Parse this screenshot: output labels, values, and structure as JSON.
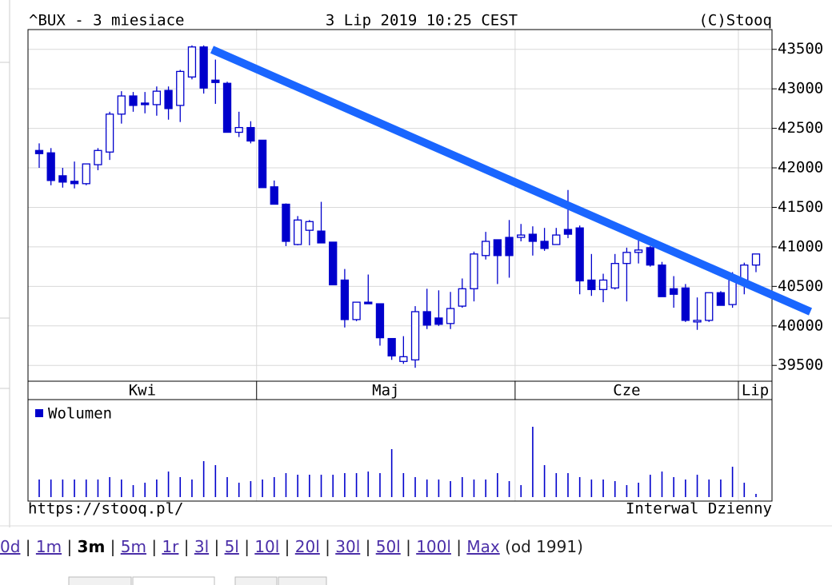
{
  "header": {
    "symbol": "^BUX - 3 miesiace",
    "date": "3 Lip 2019 10:25 CEST",
    "copyright": "(C)Stooq"
  },
  "chart_data": {
    "type": "candlestick",
    "color": "#0000cc",
    "grid": true,
    "ylim": [
      39300,
      43750
    ],
    "yticks": [
      39500,
      40000,
      40500,
      41000,
      41500,
      42000,
      42500,
      43000,
      43500
    ],
    "months": [
      {
        "label": "Kwi",
        "start": 0
      },
      {
        "label": "Maj",
        "start": 19
      },
      {
        "label": "Cze",
        "start": 41
      },
      {
        "label": "Lip",
        "start": 60
      }
    ],
    "open": [
      42220,
      42190,
      41900,
      41830,
      41800,
      42040,
      42200,
      42680,
      42910,
      42820,
      42800,
      42980,
      42790,
      43150,
      43530,
      43110,
      43070,
      42450,
      42510,
      42350,
      41760,
      41540,
      41030,
      41210,
      41200,
      41060,
      40580,
      40080,
      40300,
      40280,
      39840,
      39550,
      39570,
      40180,
      40100,
      40030,
      40250,
      40470,
      40890,
      41090,
      41120,
      41120,
      41160,
      41070,
      41030,
      41220,
      41240,
      40580,
      40460,
      40480,
      40790,
      40930,
      40990,
      40770,
      40470,
      40480,
      40050,
      40070,
      40420,
      40270,
      40580,
      40770
    ],
    "high": [
      42310,
      42250,
      42000,
      42080,
      42050,
      42250,
      42710,
      42970,
      42960,
      42960,
      43030,
      43030,
      43240,
      43550,
      43550,
      43370,
      43090,
      42710,
      42590,
      42350,
      41840,
      41550,
      41390,
      41340,
      41570,
      41060,
      40720,
      40300,
      40650,
      40280,
      39840,
      39870,
      40250,
      40470,
      40450,
      40430,
      40600,
      40940,
      41190,
      41090,
      41340,
      41290,
      41260,
      41240,
      41240,
      41720,
      41270,
      40910,
      40660,
      40910,
      40990,
      41110,
      41010,
      40810,
      40630,
      40530,
      40360,
      40420,
      40440,
      40680,
      40800,
      40910
    ],
    "low": [
      42000,
      41780,
      41750,
      41740,
      41780,
      41970,
      42100,
      42560,
      42710,
      42690,
      42660,
      42610,
      42580,
      43120,
      42940,
      42810,
      42450,
      42390,
      42310,
      41750,
      41540,
      41010,
      41020,
      41020,
      41050,
      40520,
      39980,
      40060,
      40280,
      39750,
      39570,
      39520,
      39470,
      39960,
      40000,
      39960,
      40230,
      40310,
      40840,
      40530,
      40610,
      41070,
      40890,
      40950,
      41030,
      41110,
      40400,
      40380,
      40300,
      40460,
      40310,
      40790,
      40750,
      40370,
      40230,
      40050,
      39950,
      40050,
      40260,
      40230,
      40400,
      40680
    ],
    "close": [
      42180,
      41840,
      41820,
      41800,
      42050,
      42220,
      42680,
      42910,
      42790,
      42800,
      42970,
      42750,
      43220,
      43530,
      43010,
      43080,
      42450,
      42510,
      42340,
      41750,
      41540,
      41070,
      41340,
      41320,
      41050,
      40520,
      40080,
      40300,
      40280,
      39850,
      39620,
      39610,
      40180,
      40010,
      40020,
      40220,
      40470,
      40910,
      41070,
      40890,
      40890,
      41150,
      41070,
      40980,
      41150,
      41160,
      40570,
      40460,
      40580,
      40790,
      40930,
      40960,
      40770,
      40370,
      40400,
      40070,
      40070,
      40420,
      40260,
      40580,
      40770,
      40910
    ],
    "volume": {
      "name": "Wolumen",
      "color": "#0000cc",
      "values": [
        22,
        22,
        22,
        22,
        22,
        22,
        25,
        22,
        15,
        18,
        22,
        32,
        25,
        22,
        45,
        40,
        25,
        18,
        20,
        22,
        25,
        30,
        28,
        28,
        28,
        28,
        30,
        30,
        32,
        30,
        60,
        30,
        25,
        22,
        22,
        20,
        25,
        22,
        22,
        30,
        20,
        15,
        88,
        40,
        30,
        30,
        25,
        22,
        22,
        20,
        15,
        18,
        28,
        32,
        25,
        22,
        28,
        22,
        22,
        38,
        18,
        4
      ]
    }
  },
  "footer": {
    "url": "https://stooq.pl/",
    "interval": "Interwal Dzienny"
  },
  "periods": {
    "items": [
      {
        "label": "0d",
        "link": true
      },
      {
        "label": "1m",
        "link": true
      },
      {
        "label": "3m",
        "link": false
      },
      {
        "label": "5m",
        "link": true
      },
      {
        "label": "1r",
        "link": true
      },
      {
        "label": "3l",
        "link": true
      },
      {
        "label": "5l",
        "link": true
      },
      {
        "label": "10l",
        "link": true
      },
      {
        "label": "20l",
        "link": true
      },
      {
        "label": "30l",
        "link": true
      },
      {
        "label": "50l",
        "link": true
      },
      {
        "label": "100l",
        "link": true
      },
      {
        "label": "Max",
        "link": true
      }
    ],
    "suffix": "(od 1991)"
  }
}
